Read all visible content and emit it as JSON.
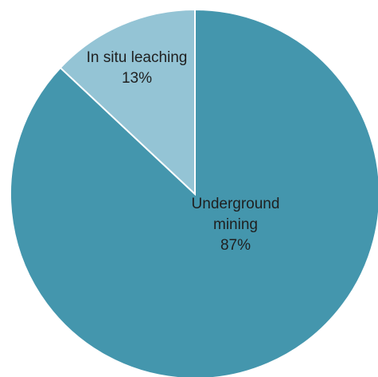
{
  "chart_data": {
    "type": "pie",
    "title": "",
    "start_angle_deg": 0,
    "direction": "clockwise",
    "slices": [
      {
        "category": "Underground mining",
        "label_lines": [
          "Underground",
          "mining"
        ],
        "value": 87,
        "value_label": "87%",
        "color": "#4496ad"
      },
      {
        "category": "In situ leaching",
        "label_lines": [
          "In situ leaching"
        ],
        "value": 13,
        "value_label": "13%",
        "color": "#94c4d5"
      }
    ],
    "slice_border_color": "#ffffff",
    "legend": "none"
  }
}
